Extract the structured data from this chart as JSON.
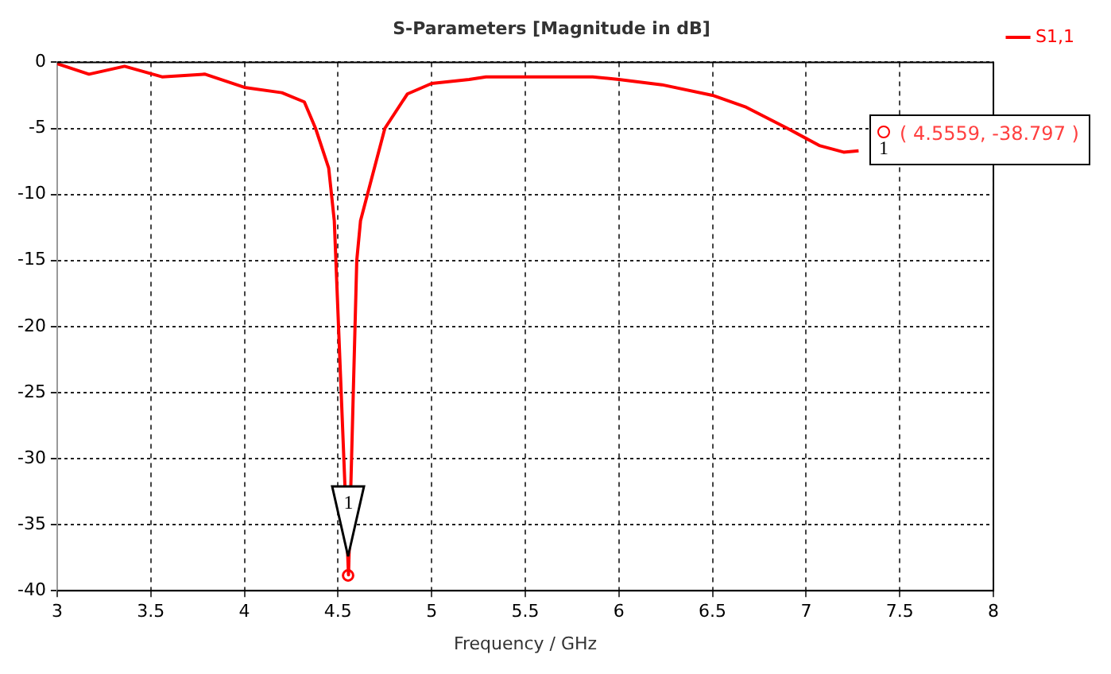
{
  "chart_data": {
    "type": "line",
    "title": "S-Parameters [Magnitude in dB]",
    "xlabel": "Frequency / GHz",
    "x": [
      3,
      3.17,
      3.36,
      3.56,
      3.79,
      4.0,
      4.2,
      4.32,
      4.38,
      4.45,
      4.48,
      4.5559,
      4.6,
      4.62,
      4.67,
      4.75,
      4.87,
      5.0,
      5.2,
      5.29,
      5.62,
      5.86,
      6.0,
      6.23,
      6.5,
      6.68,
      6.9,
      7.07,
      7.2,
      7.28
    ],
    "series": [
      {
        "name": "S1,1",
        "color": "#ff0000",
        "values": [
          -0.1,
          -0.9,
          -0.3,
          -1.1,
          -0.9,
          -1.9,
          -2.3,
          -3,
          -5,
          -8,
          -12,
          -38.797,
          -15,
          -12,
          -9.3,
          -5,
          -2.4,
          -1.6,
          -1.3,
          -1.1,
          -1.1,
          -1.1,
          -1.3,
          -1.7,
          -2.5,
          -3.4,
          -5,
          -6.3,
          -6.8,
          -6.7
        ]
      }
    ],
    "xlim": [
      3,
      8
    ],
    "xticks": [
      3,
      3.5,
      4,
      4.5,
      5,
      5.5,
      6,
      6.5,
      7,
      7.5,
      8
    ],
    "ylim": [
      -40,
      0
    ],
    "yticks": [
      -40,
      -35,
      -30,
      -25,
      -20,
      -15,
      -10,
      -5,
      0
    ],
    "grid": true,
    "legend": "top right",
    "marker": "none",
    "line_style": "solid",
    "annotations": [
      "1",
      "( 4.5559, -38.797 )",
      "1"
    ]
  }
}
